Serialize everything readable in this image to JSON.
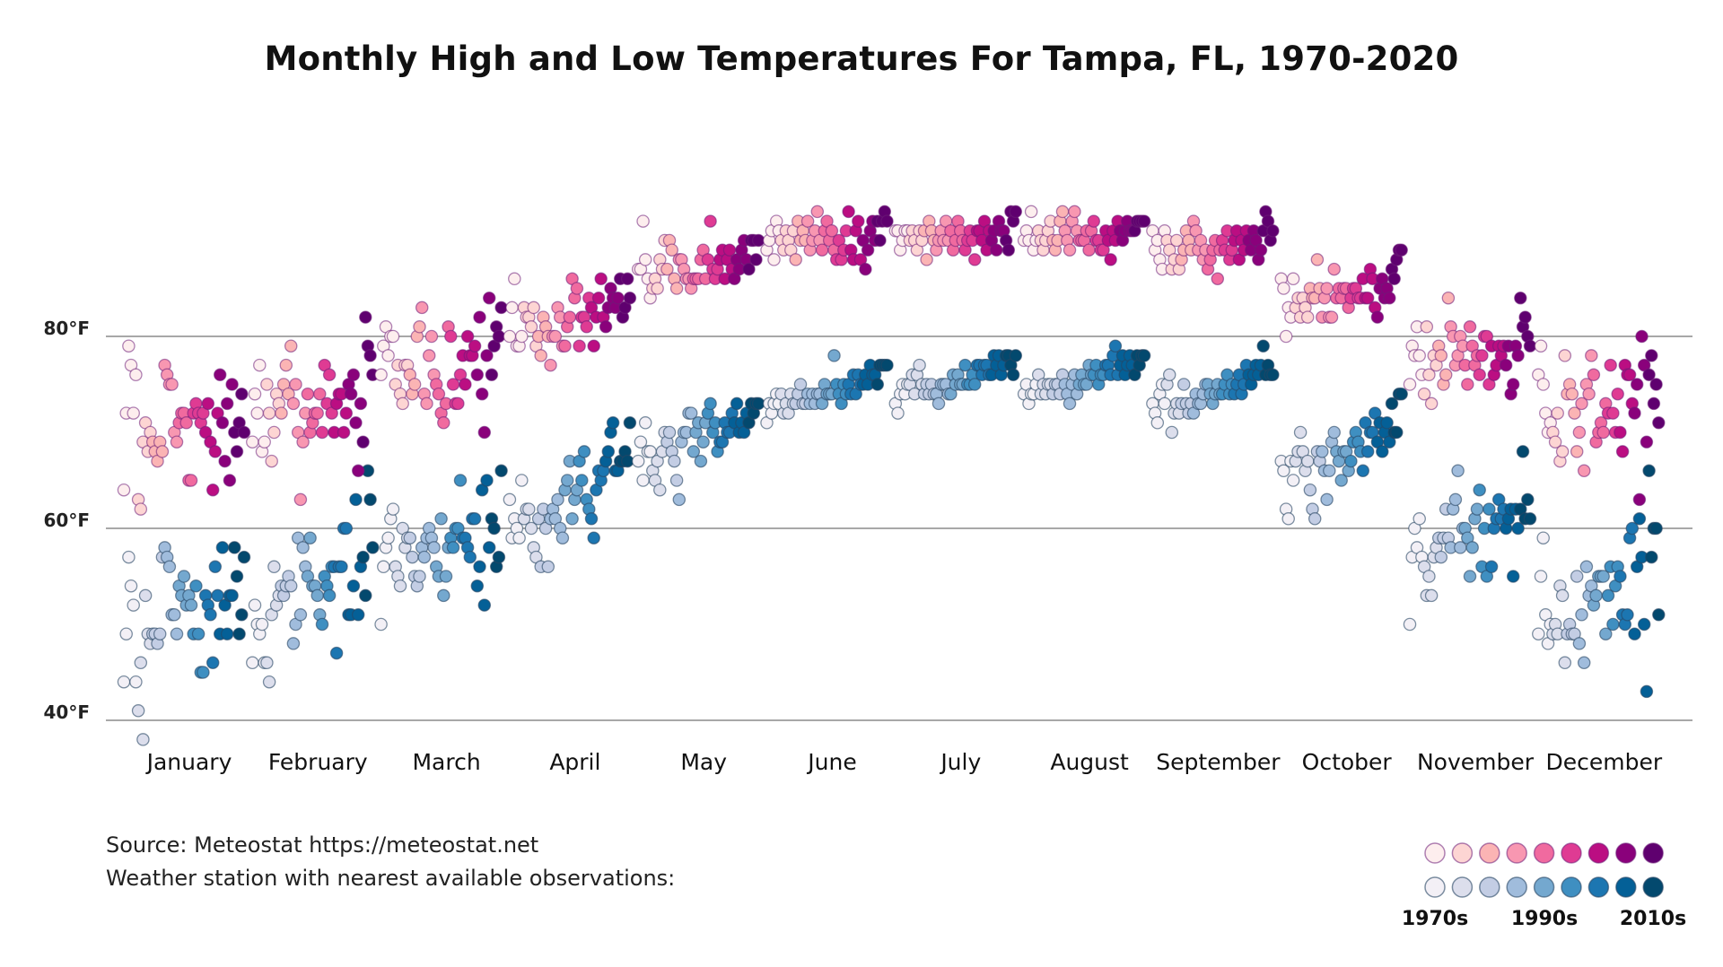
{
  "chart_data": {
    "type": "scatter",
    "title": "Monthly High and Low Temperatures For Tampa, FL, 1970-2020",
    "ylim": [
      40,
      95
    ],
    "y_ticks": [
      40,
      60,
      80
    ],
    "y_tick_labels": [
      "40°F",
      "60°F",
      "80°F"
    ],
    "grid": true,
    "categories": [
      "January",
      "February",
      "March",
      "April",
      "May",
      "June",
      "July",
      "August",
      "September",
      "October",
      "November",
      "December"
    ],
    "years": [
      1970,
      2020
    ],
    "highs": [
      [
        64,
        72,
        79,
        77,
        72,
        76,
        63,
        62,
        69,
        71,
        68,
        70,
        69,
        68,
        67,
        69,
        68,
        77,
        76,
        75,
        75,
        70,
        69,
        71,
        72,
        72,
        71,
        65,
        65,
        72,
        73,
        72,
        71,
        72,
        70,
        73,
        69,
        64,
        68,
        72,
        76,
        71,
        67,
        73,
        65,
        75,
        70,
        68,
        71,
        74,
        70
      ],
      [
        69,
        74,
        72,
        77,
        68,
        69,
        75,
        72,
        67,
        70,
        74,
        73,
        72,
        75,
        77,
        74,
        79,
        73,
        75,
        70,
        63,
        69,
        72,
        74,
        70,
        71,
        72,
        72,
        74,
        70,
        77,
        73,
        76,
        72,
        70,
        73,
        74,
        74,
        70,
        72,
        75,
        74,
        76,
        71,
        66,
        73,
        69,
        82,
        79,
        78,
        76
      ],
      [
        76,
        79,
        81,
        78,
        80,
        80,
        75,
        77,
        74,
        73,
        77,
        77,
        76,
        74,
        75,
        80,
        81,
        83,
        74,
        73,
        78,
        80,
        76,
        75,
        74,
        72,
        71,
        73,
        81,
        80,
        75,
        73,
        73,
        76,
        78,
        75,
        80,
        78,
        78,
        79,
        76,
        82,
        74,
        70,
        78,
        84,
        76,
        79,
        81,
        80,
        83
      ],
      [
        80,
        83,
        86,
        79,
        79,
        80,
        83,
        82,
        82,
        81,
        83,
        79,
        80,
        78,
        82,
        81,
        80,
        77,
        80,
        80,
        83,
        82,
        79,
        79,
        81,
        82,
        86,
        84,
        85,
        79,
        82,
        82,
        81,
        84,
        83,
        79,
        82,
        84,
        86,
        82,
        81,
        83,
        85,
        84,
        83,
        84,
        86,
        82,
        83,
        86,
        84
      ],
      [
        87,
        87,
        92,
        88,
        86,
        84,
        85,
        86,
        85,
        88,
        87,
        90,
        87,
        90,
        89,
        86,
        85,
        88,
        88,
        87,
        86,
        86,
        85,
        86,
        86,
        86,
        88,
        89,
        86,
        88,
        92,
        87,
        86,
        87,
        88,
        89,
        86,
        88,
        89,
        87,
        86,
        88,
        87,
        89,
        90,
        88,
        87,
        90,
        90,
        88,
        90
      ],
      [
        89,
        90,
        91,
        88,
        92,
        91,
        90,
        89,
        91,
        90,
        89,
        91,
        88,
        92,
        90,
        91,
        90,
        92,
        89,
        90,
        91,
        93,
        90,
        89,
        91,
        92,
        90,
        91,
        89,
        88,
        90,
        88,
        89,
        91,
        93,
        89,
        88,
        91,
        92,
        88,
        90,
        87,
        89,
        91,
        92,
        90,
        92,
        90,
        92,
        93,
        92
      ],
      [
        91,
        91,
        89,
        90,
        91,
        91,
        90,
        91,
        90,
        89,
        91,
        90,
        91,
        88,
        92,
        91,
        90,
        89,
        90,
        91,
        90,
        92,
        90,
        91,
        89,
        90,
        92,
        91,
        90,
        89,
        90,
        91,
        90,
        88,
        91,
        91,
        90,
        92,
        89,
        91,
        90,
        91,
        89,
        92,
        91,
        91,
        90,
        89,
        93,
        92,
        93
      ],
      [
        90,
        91,
        90,
        93,
        89,
        90,
        91,
        90,
        89,
        90,
        91,
        92,
        90,
        89,
        90,
        92,
        93,
        91,
        90,
        89,
        92,
        93,
        91,
        90,
        90,
        90,
        91,
        89,
        91,
        92,
        90,
        90,
        89,
        89,
        91,
        90,
        88,
        91,
        90,
        92,
        91,
        90,
        91,
        92,
        91,
        91,
        91,
        92,
        92,
        92,
        92
      ],
      [
        91,
        89,
        90,
        88,
        87,
        91,
        90,
        89,
        87,
        88,
        90,
        87,
        88,
        89,
        91,
        90,
        89,
        92,
        91,
        89,
        90,
        88,
        89,
        87,
        88,
        89,
        90,
        86,
        89,
        90,
        89,
        91,
        88,
        89,
        90,
        91,
        88,
        90,
        89,
        91,
        90,
        89,
        91,
        90,
        88,
        89,
        91,
        93,
        92,
        90,
        91
      ],
      [
        86,
        85,
        80,
        83,
        82,
        86,
        83,
        84,
        82,
        84,
        83,
        82,
        85,
        84,
        84,
        88,
        85,
        82,
        84,
        85,
        82,
        82,
        87,
        84,
        85,
        84,
        85,
        85,
        83,
        84,
        85,
        85,
        84,
        84,
        86,
        84,
        84,
        87,
        86,
        83,
        82,
        85,
        86,
        84,
        85,
        84,
        87,
        86,
        88,
        89,
        89
      ],
      [
        75,
        79,
        78,
        81,
        78,
        76,
        74,
        81,
        76,
        73,
        78,
        77,
        79,
        78,
        75,
        76,
        84,
        81,
        80,
        77,
        78,
        80,
        79,
        77,
        75,
        81,
        79,
        77,
        78,
        76,
        78,
        80,
        80,
        75,
        79,
        76,
        77,
        79,
        78,
        79,
        77,
        79,
        74,
        75,
        79,
        78,
        84,
        81,
        82,
        80,
        79
      ],
      [
        76,
        79,
        75,
        72,
        70,
        71,
        70,
        69,
        72,
        67,
        68,
        78,
        74,
        75,
        74,
        72,
        68,
        70,
        73,
        66,
        75,
        74,
        78,
        76,
        69,
        70,
        71,
        70,
        73,
        72,
        77,
        72,
        70,
        74,
        70,
        68,
        77,
        76,
        76,
        73,
        72,
        75,
        63,
        80,
        77,
        69,
        76,
        78,
        73,
        75,
        71
      ]
    ],
    "lows": [
      [
        44,
        49,
        57,
        54,
        52,
        44,
        41,
        46,
        38,
        53,
        49,
        48,
        49,
        49,
        48,
        49,
        57,
        58,
        57,
        56,
        51,
        51,
        49,
        54,
        53,
        55,
        52,
        53,
        52,
        49,
        54,
        49,
        45,
        45,
        53,
        52,
        51,
        46,
        56,
        53,
        49,
        58,
        52,
        49,
        53,
        53,
        58,
        55,
        49,
        51,
        57
      ],
      [
        46,
        52,
        50,
        49,
        50,
        46,
        46,
        44,
        51,
        56,
        52,
        53,
        54,
        53,
        54,
        55,
        54,
        48,
        50,
        59,
        51,
        58,
        56,
        55,
        59,
        54,
        54,
        53,
        51,
        50,
        55,
        54,
        53,
        56,
        56,
        47,
        56,
        56,
        60,
        60,
        51,
        51,
        54,
        63,
        51,
        56,
        57,
        53,
        66,
        63,
        58
      ],
      [
        50,
        56,
        58,
        59,
        61,
        62,
        56,
        55,
        54,
        60,
        58,
        59,
        59,
        57,
        55,
        54,
        55,
        58,
        57,
        59,
        60,
        59,
        58,
        56,
        55,
        61,
        53,
        55,
        58,
        59,
        58,
        60,
        60,
        65,
        59,
        59,
        58,
        57,
        61,
        61,
        54,
        56,
        64,
        52,
        65,
        58,
        61,
        60,
        56,
        57,
        66
      ],
      [
        63,
        59,
        61,
        60,
        59,
        65,
        61,
        62,
        62,
        60,
        58,
        57,
        61,
        56,
        62,
        60,
        56,
        61,
        62,
        61,
        63,
        60,
        59,
        64,
        65,
        67,
        61,
        63,
        64,
        67,
        65,
        68,
        63,
        62,
        61,
        59,
        64,
        66,
        65,
        66,
        67,
        68,
        70,
        71,
        66,
        66,
        67,
        67,
        68,
        67,
        71
      ],
      [
        67,
        69,
        65,
        71,
        68,
        68,
        66,
        65,
        67,
        64,
        68,
        70,
        69,
        70,
        68,
        67,
        65,
        63,
        69,
        70,
        70,
        72,
        72,
        68,
        70,
        71,
        67,
        69,
        71,
        72,
        73,
        70,
        71,
        68,
        69,
        69,
        71,
        70,
        70,
        72,
        71,
        73,
        70,
        71,
        70,
        72,
        71,
        73,
        72,
        73,
        73
      ],
      [
        71,
        73,
        72,
        73,
        74,
        73,
        74,
        72,
        73,
        72,
        74,
        73,
        73,
        74,
        75,
        73,
        73,
        74,
        73,
        74,
        73,
        74,
        74,
        73,
        75,
        74,
        74,
        74,
        78,
        75,
        74,
        73,
        75,
        74,
        75,
        74,
        76,
        74,
        76,
        75,
        75,
        76,
        75,
        77,
        76,
        76,
        75,
        77,
        77,
        77,
        77
      ],
      [
        73,
        72,
        74,
        75,
        74,
        75,
        75,
        76,
        74,
        76,
        77,
        75,
        74,
        75,
        74,
        75,
        74,
        74,
        73,
        75,
        75,
        75,
        74,
        74,
        76,
        75,
        76,
        75,
        75,
        77,
        75,
        75,
        76,
        75,
        77,
        77,
        76,
        77,
        77,
        76,
        76,
        78,
        77,
        78,
        76,
        77,
        78,
        78,
        77,
        76,
        78
      ],
      [
        74,
        75,
        73,
        74,
        74,
        75,
        76,
        74,
        75,
        74,
        75,
        75,
        74,
        75,
        75,
        74,
        76,
        75,
        74,
        73,
        75,
        76,
        74,
        75,
        76,
        75,
        75,
        77,
        76,
        76,
        77,
        75,
        76,
        76,
        77,
        77,
        76,
        78,
        79,
        76,
        77,
        78,
        76,
        77,
        78,
        77,
        76,
        78,
        77,
        78,
        78
      ],
      [
        73,
        72,
        71,
        74,
        75,
        73,
        75,
        76,
        70,
        72,
        73,
        72,
        73,
        75,
        73,
        72,
        73,
        72,
        74,
        73,
        73,
        74,
        75,
        75,
        74,
        73,
        74,
        75,
        74,
        74,
        75,
        76,
        74,
        75,
        74,
        75,
        76,
        74,
        75,
        77,
        76,
        75,
        76,
        77,
        76,
        77,
        79,
        76,
        77,
        76,
        76
      ],
      [
        67,
        66,
        62,
        61,
        67,
        65,
        67,
        68,
        70,
        68,
        66,
        67,
        64,
        62,
        61,
        68,
        67,
        68,
        66,
        63,
        66,
        69,
        70,
        68,
        67,
        65,
        68,
        68,
        66,
        67,
        69,
        70,
        69,
        68,
        66,
        71,
        68,
        70,
        70,
        72,
        69,
        71,
        68,
        70,
        71,
        69,
        73,
        70,
        70,
        74,
        74
      ],
      [
        50,
        57,
        60,
        58,
        61,
        57,
        56,
        53,
        55,
        53,
        57,
        58,
        59,
        57,
        59,
        62,
        59,
        58,
        62,
        63,
        66,
        58,
        60,
        60,
        59,
        55,
        58,
        61,
        62,
        64,
        56,
        60,
        55,
        62,
        56,
        60,
        61,
        63,
        61,
        62,
        60,
        61,
        62,
        55,
        62,
        60,
        62,
        68,
        61,
        63,
        61
      ],
      [
        49,
        55,
        59,
        51,
        48,
        50,
        49,
        50,
        49,
        54,
        53,
        46,
        49,
        50,
        49,
        49,
        55,
        48,
        51,
        46,
        56,
        53,
        54,
        52,
        53,
        55,
        55,
        55,
        49,
        53,
        56,
        50,
        54,
        56,
        55,
        51,
        50,
        51,
        59,
        60,
        49,
        56,
        61,
        57,
        50,
        43,
        66,
        57,
        60,
        60,
        51
      ]
    ],
    "high_colors": [
      "#fdeeee",
      "#fdd5d3",
      "#fbb4b4",
      "#f897b1",
      "#f06a9f",
      "#df3b93",
      "#bb0e82",
      "#8a017b",
      "#5f006f"
    ],
    "low_colors": [
      "#f3f0f6",
      "#dcdeec",
      "#c3cde4",
      "#a0bcdc",
      "#74a8cf",
      "#3f8fc1",
      "#1c76b1",
      "#046097",
      "#03496e"
    ],
    "legend": {
      "labels": [
        "1970s",
        "1990s",
        "2010s"
      ]
    },
    "source": "Source: Meteostat https://meteostat.net",
    "note": "Weather station with nearest available observations:"
  }
}
